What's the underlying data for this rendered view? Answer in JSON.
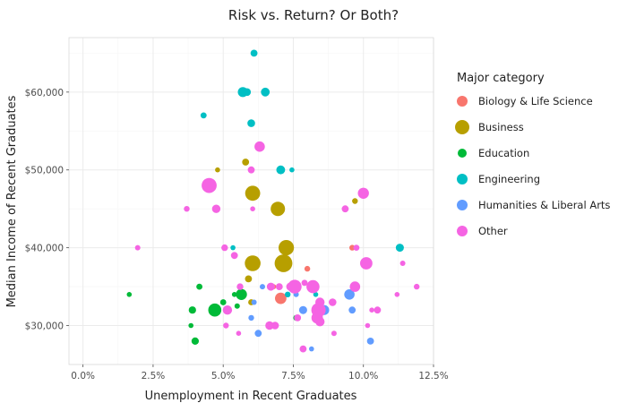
{
  "chart_data": {
    "type": "scatter",
    "title": "Risk vs. Return? Or Both?",
    "xlabel": "Unemployment in Recent Graduates",
    "ylabel": "Median Income of Recent Graduates",
    "xlim": [
      -0.005,
      0.125
    ],
    "ylim": [
      25000,
      67000
    ],
    "x_ticks": [
      0.0,
      0.025,
      0.05,
      0.075,
      0.1,
      0.125
    ],
    "x_tick_labels": [
      "0.0%",
      "2.5%",
      "5.0%",
      "7.5%",
      "10.0%",
      "12.5%"
    ],
    "y_ticks": [
      30000,
      40000,
      50000,
      60000
    ],
    "y_tick_labels": [
      "$30,000",
      "$40,000",
      "$50,000",
      "$60,000"
    ],
    "grid": true,
    "legend_position": "right",
    "legend_title": "Major  category",
    "point_size_variable": "relative, unlabeled",
    "series": [
      {
        "name": "Biology & Life Science",
        "color": "#F8766D",
        "points": [
          {
            "x": 0.0705,
            "y": 33500,
            "s": 3.0
          },
          {
            "x": 0.08,
            "y": 37300,
            "s": 1.5
          },
          {
            "x": 0.079,
            "y": 35500,
            "s": 1.5
          },
          {
            "x": 0.096,
            "y": 40000,
            "s": 1.5
          },
          {
            "x": 0.068,
            "y": 35000,
            "s": 1.3
          }
        ]
      },
      {
        "name": "Business",
        "color": "#B79F00",
        "points": [
          {
            "x": 0.058,
            "y": 51000,
            "s": 1.8
          },
          {
            "x": 0.048,
            "y": 50000,
            "s": 1.3
          },
          {
            "x": 0.0605,
            "y": 47000,
            "s": 3.9
          },
          {
            "x": 0.0695,
            "y": 45000,
            "s": 3.7
          },
          {
            "x": 0.0725,
            "y": 40000,
            "s": 4.0
          },
          {
            "x": 0.0715,
            "y": 38000,
            "s": 4.6
          },
          {
            "x": 0.0605,
            "y": 38000,
            "s": 4.1
          },
          {
            "x": 0.097,
            "y": 46000,
            "s": 1.5
          },
          {
            "x": 0.06,
            "y": 33000,
            "s": 1.6
          },
          {
            "x": 0.059,
            "y": 36000,
            "s": 1.8
          }
        ]
      },
      {
        "name": "Education",
        "color": "#00BA38",
        "points": [
          {
            "x": 0.0165,
            "y": 34000,
            "s": 1.3
          },
          {
            "x": 0.0385,
            "y": 30000,
            "s": 1.3
          },
          {
            "x": 0.04,
            "y": 28000,
            "s": 1.9
          },
          {
            "x": 0.039,
            "y": 32000,
            "s": 1.9
          },
          {
            "x": 0.0415,
            "y": 35000,
            "s": 1.6
          },
          {
            "x": 0.047,
            "y": 32000,
            "s": 3.4
          },
          {
            "x": 0.05,
            "y": 33000,
            "s": 1.6
          },
          {
            "x": 0.054,
            "y": 34000,
            "s": 1.3
          },
          {
            "x": 0.0565,
            "y": 34000,
            "s": 2.9
          },
          {
            "x": 0.055,
            "y": 32500,
            "s": 1.4
          },
          {
            "x": 0.076,
            "y": 31000,
            "s": 1.5
          }
        ]
      },
      {
        "name": "Engineering",
        "color": "#00BFC4",
        "points": [
          {
            "x": 0.061,
            "y": 65000,
            "s": 1.8
          },
          {
            "x": 0.057,
            "y": 60000,
            "s": 2.6
          },
          {
            "x": 0.0585,
            "y": 60000,
            "s": 2.0
          },
          {
            "x": 0.065,
            "y": 60000,
            "s": 2.3
          },
          {
            "x": 0.043,
            "y": 57000,
            "s": 1.6
          },
          {
            "x": 0.06,
            "y": 56000,
            "s": 2.0
          },
          {
            "x": 0.0705,
            "y": 50000,
            "s": 2.3
          },
          {
            "x": 0.0745,
            "y": 50000,
            "s": 1.3
          },
          {
            "x": 0.0535,
            "y": 40000,
            "s": 1.3
          },
          {
            "x": 0.113,
            "y": 40000,
            "s": 2.1
          },
          {
            "x": 0.073,
            "y": 34000,
            "s": 1.5
          },
          {
            "x": 0.083,
            "y": 34000,
            "s": 1.3
          }
        ]
      },
      {
        "name": "Humanities & Liberal Arts",
        "color": "#619CFF",
        "points": [
          {
            "x": 0.064,
            "y": 35000,
            "s": 1.4
          },
          {
            "x": 0.076,
            "y": 34000,
            "s": 1.4
          },
          {
            "x": 0.06,
            "y": 31000,
            "s": 1.5
          },
          {
            "x": 0.0625,
            "y": 29000,
            "s": 1.8
          },
          {
            "x": 0.0785,
            "y": 32000,
            "s": 2.1
          },
          {
            "x": 0.086,
            "y": 32000,
            "s": 2.6
          },
          {
            "x": 0.095,
            "y": 34000,
            "s": 2.7
          },
          {
            "x": 0.096,
            "y": 32000,
            "s": 1.8
          },
          {
            "x": 0.0815,
            "y": 27000,
            "s": 1.3
          },
          {
            "x": 0.1025,
            "y": 28000,
            "s": 1.8
          },
          {
            "x": 0.061,
            "y": 33000,
            "s": 1.4
          }
        ]
      },
      {
        "name": "Other",
        "color": "#F564E3",
        "points": [
          {
            "x": 0.063,
            "y": 53000,
            "s": 2.7
          },
          {
            "x": 0.045,
            "y": 48000,
            "s": 3.9
          },
          {
            "x": 0.06,
            "y": 50000,
            "s": 1.8
          },
          {
            "x": 0.0475,
            "y": 45000,
            "s": 2.2
          },
          {
            "x": 0.0605,
            "y": 45000,
            "s": 1.3
          },
          {
            "x": 0.037,
            "y": 45000,
            "s": 1.5
          },
          {
            "x": 0.1,
            "y": 47000,
            "s": 2.9
          },
          {
            "x": 0.0935,
            "y": 45000,
            "s": 1.8
          },
          {
            "x": 0.0195,
            "y": 40000,
            "s": 1.4
          },
          {
            "x": 0.0505,
            "y": 40000,
            "s": 1.7
          },
          {
            "x": 0.054,
            "y": 39000,
            "s": 1.8
          },
          {
            "x": 0.0975,
            "y": 40000,
            "s": 1.6
          },
          {
            "x": 0.101,
            "y": 38000,
            "s": 3.2
          },
          {
            "x": 0.114,
            "y": 38000,
            "s": 1.4
          },
          {
            "x": 0.119,
            "y": 35000,
            "s": 1.5
          },
          {
            "x": 0.112,
            "y": 34000,
            "s": 1.3
          },
          {
            "x": 0.056,
            "y": 35000,
            "s": 1.7
          },
          {
            "x": 0.067,
            "y": 35000,
            "s": 2.1
          },
          {
            "x": 0.07,
            "y": 35000,
            "s": 1.8
          },
          {
            "x": 0.0755,
            "y": 35000,
            "s": 3.6
          },
          {
            "x": 0.074,
            "y": 35000,
            "s": 2.2
          },
          {
            "x": 0.082,
            "y": 35000,
            "s": 3.4
          },
          {
            "x": 0.0845,
            "y": 33000,
            "s": 2.4
          },
          {
            "x": 0.084,
            "y": 32000,
            "s": 3.7
          },
          {
            "x": 0.0835,
            "y": 31000,
            "s": 3.0
          },
          {
            "x": 0.0845,
            "y": 30500,
            "s": 2.4
          },
          {
            "x": 0.079,
            "y": 35500,
            "s": 1.6
          },
          {
            "x": 0.097,
            "y": 35000,
            "s": 2.7
          },
          {
            "x": 0.089,
            "y": 33000,
            "s": 2.0
          },
          {
            "x": 0.0895,
            "y": 29000,
            "s": 1.4
          },
          {
            "x": 0.105,
            "y": 32000,
            "s": 1.8
          },
          {
            "x": 0.103,
            "y": 32000,
            "s": 1.3
          },
          {
            "x": 0.0515,
            "y": 32000,
            "s": 2.4
          },
          {
            "x": 0.051,
            "y": 30000,
            "s": 1.5
          },
          {
            "x": 0.0665,
            "y": 30000,
            "s": 2.2
          },
          {
            "x": 0.0685,
            "y": 30000,
            "s": 2.0
          },
          {
            "x": 0.0765,
            "y": 31000,
            "s": 1.8
          },
          {
            "x": 0.0785,
            "y": 27000,
            "s": 1.8
          },
          {
            "x": 0.0555,
            "y": 29000,
            "s": 1.3
          },
          {
            "x": 0.1015,
            "y": 30000,
            "s": 1.3
          }
        ]
      }
    ]
  }
}
